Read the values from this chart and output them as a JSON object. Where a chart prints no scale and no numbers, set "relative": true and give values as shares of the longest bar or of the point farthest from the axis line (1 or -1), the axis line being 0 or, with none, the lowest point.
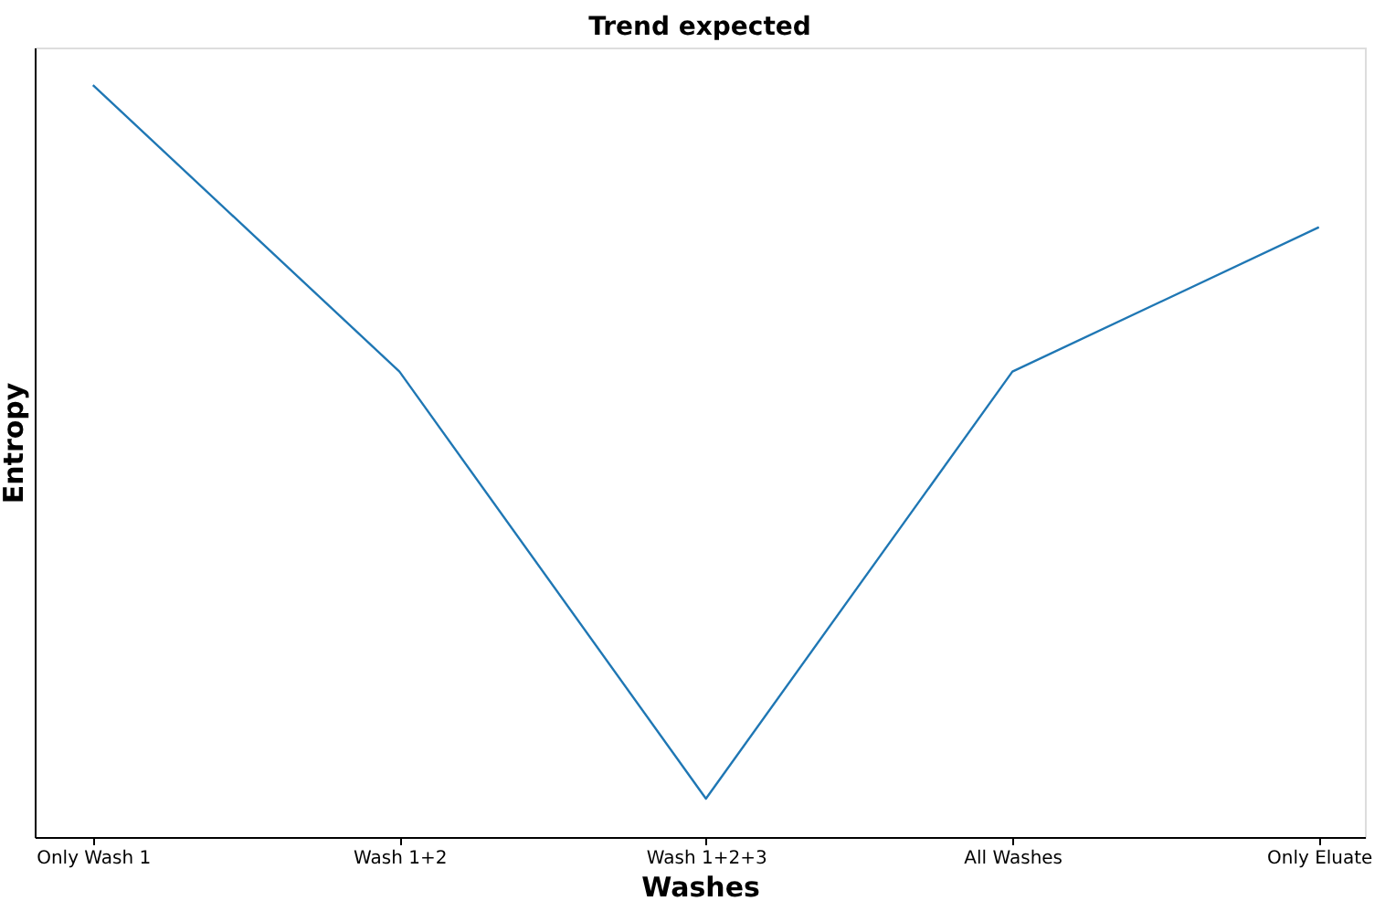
{
  "chart_data": {
    "type": "line",
    "title": "Trend expected",
    "xlabel": "Washes",
    "ylabel": "Entropy",
    "relative": true,
    "categories": [
      "Only Wash 1",
      "Wash 1+2",
      "Wash 1+2+3",
      "All Washes",
      "Only Eluate"
    ],
    "series": [
      {
        "color": "#1f77b4",
        "values": [
          1,
          0.619,
          0.051,
          0.619,
          0.811
        ]
      }
    ],
    "grid": false,
    "marker": "none",
    "line_style": "solid"
  }
}
